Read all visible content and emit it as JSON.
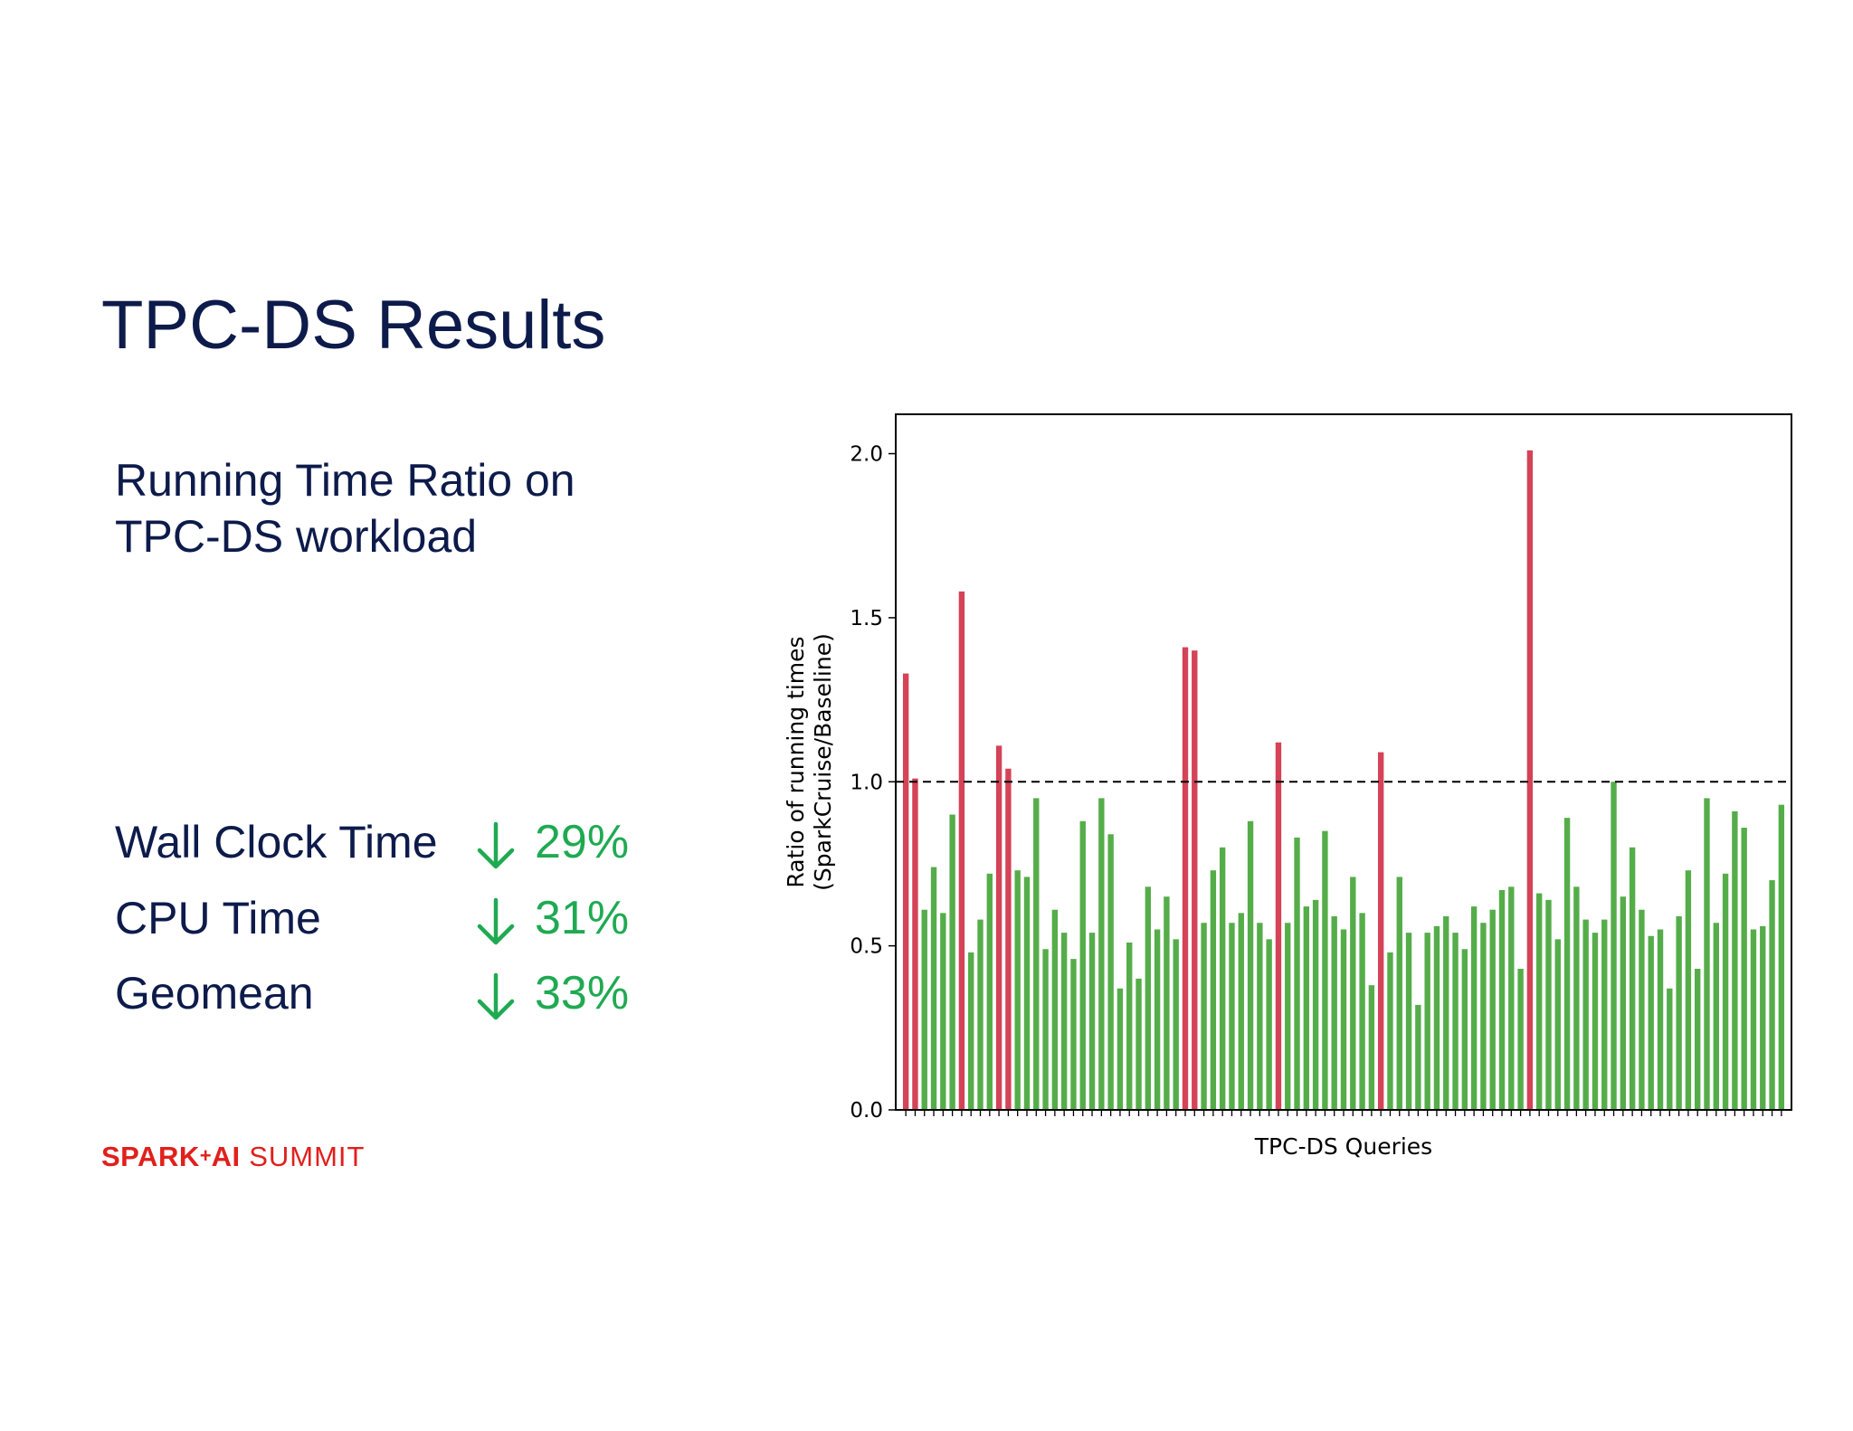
{
  "slide": {
    "title": "TPC-DS Results",
    "subtitle_lines": [
      "Running Time Ratio on",
      "TPC-DS workload"
    ]
  },
  "metrics": [
    {
      "label": "Wall Clock Time",
      "arrow_icon": "arrow-down-icon",
      "value": "29%"
    },
    {
      "label": "CPU Time",
      "arrow_icon": "arrow-down-icon",
      "value": "31%"
    },
    {
      "label": "Geomean",
      "arrow_icon": "arrow-down-icon",
      "value": "33%"
    }
  ],
  "logo": {
    "strong": "SPARK",
    "plus": "+",
    "strong2": "AI",
    "light": " SUMMIT"
  },
  "colors": {
    "title": "#0d1b4b",
    "metric_value": "#1faa52",
    "bar_slower": "#d44357",
    "bar_faster": "#55ad4a",
    "logo": "#e0201c"
  },
  "chart_data": {
    "type": "bar",
    "xlabel": "TPC-DS Queries",
    "ylabel_lines": [
      "Ratio of running times",
      "(SparkCruise/Baseline)"
    ],
    "ylim": [
      0,
      2.12
    ],
    "yticks": [
      "0.0",
      "0.5",
      "1.0",
      "1.5",
      "2.0"
    ],
    "reference_line": {
      "y": 1.0,
      "style": "dashed"
    },
    "category_tick_labels": "none",
    "grid": false,
    "legend": "none",
    "values": [
      1.33,
      1.01,
      0.61,
      0.74,
      0.6,
      0.9,
      1.58,
      0.48,
      0.58,
      0.72,
      1.11,
      1.04,
      0.73,
      0.71,
      0.95,
      0.49,
      0.61,
      0.54,
      0.46,
      0.88,
      0.54,
      0.95,
      0.84,
      0.37,
      0.51,
      0.4,
      0.68,
      0.55,
      0.65,
      0.52,
      1.41,
      1.4,
      0.57,
      0.73,
      0.8,
      0.57,
      0.6,
      0.88,
      0.57,
      0.52,
      1.12,
      0.57,
      0.83,
      0.62,
      0.64,
      0.85,
      0.59,
      0.55,
      0.71,
      0.6,
      0.38,
      1.09,
      0.48,
      0.71,
      0.54,
      0.32,
      0.54,
      0.56,
      0.59,
      0.54,
      0.49,
      0.62,
      0.57,
      0.61,
      0.67,
      0.68,
      0.43,
      2.01,
      0.66,
      0.64,
      0.52,
      0.89,
      0.68,
      0.58,
      0.54,
      0.58,
      1.0,
      0.65,
      0.8,
      0.61,
      0.53,
      0.55,
      0.37,
      0.59,
      0.73,
      0.43,
      0.95,
      0.57,
      0.72,
      0.91,
      0.86,
      0.55,
      0.56,
      0.7,
      0.93
    ]
  }
}
